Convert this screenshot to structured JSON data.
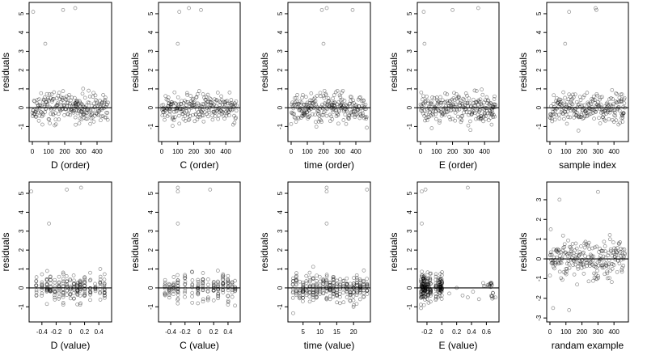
{
  "chart_data": [
    {
      "type": "scatter",
      "xlabel": "D (order)",
      "ylabel": "residuals",
      "xlim": [
        -20,
        490
      ],
      "ylim": [
        -1.8,
        5.6
      ],
      "xticks": [
        0,
        100,
        200,
        300,
        400
      ],
      "yticks": [
        -1,
        0,
        1,
        2,
        3,
        4,
        5
      ],
      "hline": 0,
      "x_mode": "index",
      "seed": 11,
      "clusters": [
        [
          265,
          275,
          0.2,
          6
        ],
        [
          300,
          320,
          -0.3,
          6
        ]
      ],
      "highlights": [
        [
          5,
          5.1
        ],
        [
          190,
          5.2
        ],
        [
          265,
          5.3
        ],
        [
          80,
          3.4
        ]
      ]
    },
    {
      "type": "scatter",
      "xlabel": "C (order)",
      "ylabel": "residuals",
      "xlim": [
        -20,
        490
      ],
      "ylim": [
        -1.8,
        5.6
      ],
      "xticks": [
        0,
        100,
        200,
        300,
        400
      ],
      "yticks": [
        -1,
        0,
        1,
        2,
        3,
        4,
        5
      ],
      "hline": 0,
      "x_mode": "index",
      "seed": 23,
      "clusters": [
        [
          40,
          70,
          0.1,
          5
        ]
      ],
      "highlights": [
        [
          110,
          5.1
        ],
        [
          170,
          5.3
        ],
        [
          245,
          5.2
        ],
        [
          100,
          3.4
        ]
      ]
    },
    {
      "type": "scatter",
      "xlabel": "time (order)",
      "ylabel": "residuals",
      "xlim": [
        -20,
        490
      ],
      "ylim": [
        -1.8,
        5.6
      ],
      "xticks": [
        0,
        100,
        200,
        300,
        400
      ],
      "yticks": [
        -1,
        0,
        1,
        2,
        3,
        4,
        5
      ],
      "hline": 0,
      "x_mode": "index",
      "seed": 37,
      "clusters": [
        [
          50,
          120,
          -0.4,
          10
        ],
        [
          250,
          330,
          0.2,
          8
        ]
      ],
      "highlights": [
        [
          190,
          5.2
        ],
        [
          220,
          5.3
        ],
        [
          380,
          5.2
        ],
        [
          200,
          3.4
        ]
      ]
    },
    {
      "type": "scatter",
      "xlabel": "E (order)",
      "ylabel": "residuals",
      "xlim": [
        -20,
        490
      ],
      "ylim": [
        -1.8,
        5.6
      ],
      "xticks": [
        0,
        100,
        200,
        300,
        400
      ],
      "yticks": [
        -1,
        0,
        1,
        2,
        3,
        4,
        5
      ],
      "hline": 0,
      "x_mode": "index",
      "seed": 41,
      "clusters": [
        [
          360,
          400,
          -0.45,
          8
        ],
        [
          430,
          470,
          -0.4,
          8
        ]
      ],
      "highlights": [
        [
          20,
          5.1
        ],
        [
          25,
          3.4
        ],
        [
          200,
          5.2
        ],
        [
          360,
          5.3
        ]
      ]
    },
    {
      "type": "scatter",
      "xlabel": "sample index",
      "ylabel": "residuals",
      "xlim": [
        -20,
        490
      ],
      "ylim": [
        -1.8,
        5.6
      ],
      "xticks": [
        0,
        100,
        200,
        300,
        400
      ],
      "yticks": [
        -1,
        0,
        1,
        2,
        3,
        4,
        5
      ],
      "hline": 0,
      "x_mode": "index",
      "seed": 53,
      "clusters": [
        [
          440,
          470,
          -0.4,
          6
        ]
      ],
      "highlights": [
        [
          120,
          5.1
        ],
        [
          285,
          5.3
        ],
        [
          290,
          5.2
        ],
        [
          95,
          3.4
        ]
      ]
    },
    {
      "type": "scatter",
      "xlabel": "D (value)",
      "ylabel": "residuals",
      "xlim": [
        -0.58,
        0.58
      ],
      "ylim": [
        -1.8,
        5.6
      ],
      "xticks": [
        -0.4,
        -0.2,
        0,
        0.2,
        0.4
      ],
      "yticks": [
        -1,
        0,
        1,
        2,
        3,
        4,
        5
      ],
      "hline": 0,
      "x_mode": "columns",
      "columns": [
        -0.48,
        -0.4,
        -0.33,
        -0.28,
        -0.22,
        -0.16,
        -0.1,
        -0.05,
        0.0,
        0.05,
        0.1,
        0.14,
        0.2,
        0.28,
        0.35,
        0.42,
        0.48
      ],
      "seed": 61,
      "highlights": [
        [
          -0.55,
          5.1
        ],
        [
          -0.05,
          5.2
        ],
        [
          0.15,
          5.3
        ],
        [
          -0.3,
          3.4
        ]
      ]
    },
    {
      "type": "scatter",
      "xlabel": "C (value)",
      "ylabel": "residuals",
      "xlim": [
        -0.57,
        0.57
      ],
      "ylim": [
        -1.8,
        5.6
      ],
      "xticks": [
        -0.4,
        -0.2,
        0,
        0.2,
        0.4
      ],
      "yticks": [
        -1,
        0,
        1,
        2,
        3,
        4,
        5
      ],
      "hline": 0,
      "x_mode": "columns",
      "columns": [
        -0.48,
        -0.42,
        -0.36,
        -0.3,
        -0.2,
        -0.1,
        -0.02,
        0.05,
        0.12,
        0.2,
        0.26,
        0.33,
        0.4,
        0.46,
        0.5
      ],
      "seed": 71,
      "highlights": [
        [
          -0.3,
          5.1
        ],
        [
          -0.3,
          5.3
        ],
        [
          0.15,
          5.2
        ],
        [
          -0.3,
          3.4
        ]
      ]
    },
    {
      "type": "scatter",
      "xlabel": "time (value)",
      "ylabel": "residuals",
      "xlim": [
        0.5,
        25
      ],
      "ylim": [
        -1.8,
        5.6
      ],
      "xticks": [
        5,
        10,
        15,
        20
      ],
      "yticks": [
        -1,
        0,
        1,
        2,
        3,
        4,
        5
      ],
      "hline": 0,
      "x_mode": "columns",
      "columns": [
        2,
        3,
        4,
        5,
        6,
        7,
        8,
        9,
        10,
        11,
        12,
        13,
        14,
        15,
        16,
        17,
        18,
        19,
        20,
        21,
        22,
        23,
        24
      ],
      "seed": 83,
      "highlights": [
        [
          12,
          5.1
        ],
        [
          12,
          5.3
        ],
        [
          24,
          5.2
        ],
        [
          12,
          3.4
        ]
      ]
    },
    {
      "type": "scatter",
      "xlabel": "E (value)",
      "ylabel": "residuals",
      "xlim": [
        -0.33,
        0.77
      ],
      "ylim": [
        -1.8,
        5.6
      ],
      "xticks": [
        -0.2,
        0,
        0.2,
        0.4,
        0.6
      ],
      "yticks": [
        -1,
        0,
        1,
        2,
        3,
        4,
        5
      ],
      "hline": 0,
      "x_mode": "columns",
      "columns": [
        -0.28,
        -0.27,
        -0.26,
        -0.25,
        -0.24,
        -0.23,
        -0.22,
        -0.2,
        -0.19,
        -0.18,
        -0.16,
        -0.15,
        -0.08,
        -0.05,
        -0.03,
        -0.02,
        -0.01,
        0.0
      ],
      "seed": 97,
      "clusters": [
        [
          0.55,
          0.68,
          0.15,
          14
        ],
        [
          0.66,
          0.72,
          -0.4,
          8
        ]
      ],
      "extra": [
        [
          0.1,
          -0.3
        ],
        [
          0.2,
          0.0
        ],
        [
          0.35,
          -0.5
        ],
        [
          0.42,
          -0.2
        ],
        [
          0.5,
          -0.6
        ],
        [
          0.28,
          -0.4
        ]
      ],
      "highlights": [
        [
          -0.27,
          5.1
        ],
        [
          -0.27,
          3.4
        ],
        [
          -0.22,
          5.2
        ],
        [
          0.35,
          5.3
        ]
      ]
    },
    {
      "type": "scatter",
      "xlabel": "randam example",
      "ylabel": "residuals",
      "xlim": [
        -20,
        490
      ],
      "ylim": [
        -3.2,
        3.9
      ],
      "xticks": [
        0,
        100,
        200,
        300,
        400
      ],
      "yticks": [
        -3,
        -2,
        -1,
        0,
        1,
        2,
        3
      ],
      "hline": 0,
      "x_mode": "index",
      "seed": 109,
      "spread": 1.0,
      "highlights": [
        [
          5,
          1.5
        ],
        [
          60,
          3.0
        ],
        [
          120,
          -2.6
        ],
        [
          300,
          3.4
        ],
        [
          20,
          -2.5
        ]
      ]
    }
  ]
}
